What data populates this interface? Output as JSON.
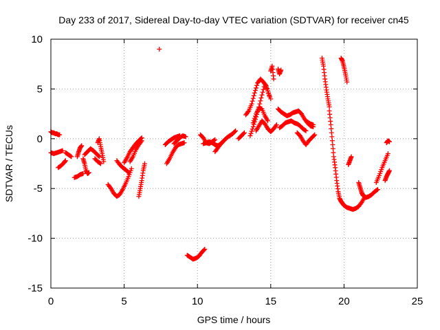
{
  "chart_data": {
    "type": "scatter",
    "title": "Day 233 of 2017, Sidereal Day-to-day VTEC variation (SDTVAR) for receiver cn45",
    "xlabel": "GPS time / hours",
    "ylabel": "SDTVAR / TECUs",
    "xlim": [
      0,
      25
    ],
    "ylim": [
      -15,
      10
    ],
    "xticks": [
      0,
      5,
      10,
      15,
      20,
      25
    ],
    "yticks": [
      -15,
      -10,
      -5,
      0,
      5,
      10
    ],
    "xtick_labels": [
      "0",
      "5",
      "10",
      "15",
      "20",
      "25"
    ],
    "ytick_labels": [
      "-15",
      "-10",
      "-5",
      "0",
      "5",
      "10"
    ],
    "grid": true,
    "marker": "plus",
    "series": [
      {
        "name": "SDTVAR",
        "color": "#ff0000",
        "segments": [
          {
            "x": [
              0.0,
              0.1,
              0.2,
              0.3,
              0.4,
              0.5,
              0.6
            ],
            "y": [
              0.7,
              0.6,
              0.6,
              0.5,
              0.5,
              0.4,
              0.4
            ]
          },
          {
            "x": [
              0.0,
              0.2,
              0.4,
              0.6,
              0.8
            ],
            "y": [
              -1.4,
              -1.5,
              -1.4,
              -1.3,
              -1.2
            ]
          },
          {
            "x": [
              0.5,
              0.7,
              0.9,
              1.0
            ],
            "y": [
              -2.9,
              -2.7,
              -2.4,
              -2.2
            ]
          },
          {
            "x": [
              1.0,
              1.2,
              1.4
            ],
            "y": [
              -1.4,
              -1.6,
              -1.8
            ]
          },
          {
            "x": [
              1.6,
              1.8,
              2.0,
              2.2
            ],
            "y": [
              -3.9,
              -3.8,
              -3.6,
              -3.5
            ]
          },
          {
            "x": [
              1.8,
              1.9,
              2.0,
              2.1
            ],
            "y": [
              -1.8,
              -1.3,
              -0.9,
              -0.7
            ]
          },
          {
            "x": [
              2.2,
              2.3,
              2.4,
              2.5,
              2.6
            ],
            "y": [
              -2.0,
              -2.5,
              -3.2,
              -3.5,
              -3.4
            ]
          },
          {
            "x": [
              2.3,
              2.5,
              2.7,
              2.9,
              3.1,
              3.3
            ],
            "y": [
              -1.6,
              -1.3,
              -1.0,
              -1.2,
              -1.5,
              -1.8
            ]
          },
          {
            "x": [
              3.2,
              3.3,
              3.4,
              3.5,
              3.6
            ],
            "y": [
              -0.4,
              0.0,
              -0.8,
              -1.5,
              -2.3
            ]
          },
          {
            "x": [
              3.0,
              3.2,
              3.4
            ],
            "y": [
              -2.0,
              -2.3,
              -2.5
            ]
          },
          {
            "x": [
              3.9,
              4.1,
              4.3,
              4.5,
              4.7,
              4.9,
              5.1,
              5.3,
              5.5
            ],
            "y": [
              -4.6,
              -5.0,
              -5.5,
              -5.8,
              -5.6,
              -5.1,
              -4.5,
              -3.8,
              -3.0
            ]
          },
          {
            "x": [
              4.5,
              4.7,
              4.9,
              5.1,
              5.3
            ],
            "y": [
              -2.2,
              -2.6,
              -2.9,
              -3.1,
              -3.4
            ]
          },
          {
            "x": [
              5.0,
              5.2,
              5.4,
              5.6,
              5.8,
              6.0,
              6.2
            ],
            "y": [
              -2.4,
              -1.9,
              -1.3,
              -0.9,
              -0.5,
              -0.2,
              0.1
            ]
          },
          {
            "x": [
              5.4,
              5.6,
              5.8,
              6.0,
              6.2
            ],
            "y": [
              -2.3,
              -1.8,
              -1.1,
              -0.6,
              -0.2
            ]
          },
          {
            "x": [
              6.0,
              6.1,
              6.2,
              6.3,
              6.4
            ],
            "y": [
              -5.8,
              -5.0,
              -4.2,
              -3.2,
              -2.5
            ]
          },
          {
            "x": [
              7.4
            ],
            "y": [
              9.0
            ]
          },
          {
            "x": [
              7.8,
              8.0,
              8.2,
              8.4,
              8.6,
              8.8
            ],
            "y": [
              -0.6,
              -0.3,
              -0.1,
              0.1,
              0.2,
              0.3
            ]
          },
          {
            "x": [
              7.9,
              8.1,
              8.3,
              8.5,
              8.7,
              8.9,
              9.1
            ],
            "y": [
              -2.5,
              -2.0,
              -1.4,
              -0.9,
              -0.6,
              -0.5,
              -0.4
            ]
          },
          {
            "x": [
              8.4,
              8.6,
              8.8,
              9.0,
              9.2
            ],
            "y": [
              -0.5,
              -0.2,
              0.1,
              0.3,
              0.2
            ]
          },
          {
            "x": [
              9.3,
              9.5,
              9.7,
              9.9,
              10.1,
              10.3,
              10.5
            ],
            "y": [
              -11.7,
              -11.9,
              -12.1,
              -12.0,
              -11.8,
              -11.4,
              -11.1
            ]
          },
          {
            "x": [
              10.2,
              10.4,
              10.6,
              10.8,
              11.0,
              11.2
            ],
            "y": [
              0.4,
              0.1,
              -0.4,
              -0.5,
              -0.3,
              -0.1
            ]
          },
          {
            "x": [
              10.4,
              10.6,
              10.8,
              11.0,
              11.2,
              11.4,
              11.6,
              11.8
            ],
            "y": [
              -0.5,
              -0.4,
              -0.3,
              -0.4,
              -0.6,
              -0.7,
              -0.5,
              -0.2
            ]
          },
          {
            "x": [
              11.2,
              11.4,
              11.6,
              11.8,
              12.0,
              12.2,
              12.4,
              12.6
            ],
            "y": [
              -1.3,
              -0.9,
              -0.5,
              -0.2,
              0.1,
              0.3,
              0.5,
              0.8
            ]
          },
          {
            "x": [
              12.8,
              13.0,
              13.2
            ],
            "y": [
              0.0,
              0.3,
              0.6
            ]
          },
          {
            "x": [
              13.3,
              13.5,
              13.7,
              13.9,
              14.1,
              14.3,
              14.5,
              14.7,
              14.9
            ],
            "y": [
              2.4,
              2.8,
              3.5,
              4.6,
              5.6,
              6.0,
              5.7,
              5.3,
              4.3
            ]
          },
          {
            "x": [
              13.6,
              13.8,
              14.0,
              14.2,
              14.4,
              14.6,
              14.8,
              15.0
            ],
            "y": [
              0.3,
              1.2,
              2.2,
              3.2,
              4.4,
              5.5,
              4.8,
              4.0
            ]
          },
          {
            "x": [
              13.8,
              14.0,
              14.2,
              14.4,
              14.6,
              14.8
            ],
            "y": [
              1.6,
              2.5,
              3.1,
              3.0,
              2.3,
              1.8
            ]
          },
          {
            "x": [
              14.0,
              14.2,
              14.4,
              14.6,
              14.8,
              15.0,
              15.2,
              15.4
            ],
            "y": [
              0.8,
              1.3,
              1.8,
              1.5,
              1.0,
              0.7,
              1.0,
              1.4
            ]
          },
          {
            "x": [
              15.0,
              15.1,
              15.2
            ],
            "y": [
              6.8,
              7.3,
              6.0
            ]
          },
          {
            "x": [
              15.5,
              15.6,
              15.7
            ],
            "y": [
              7.0,
              6.5,
              6.9
            ]
          },
          {
            "x": [
              15.5,
              15.7,
              15.9,
              16.1,
              16.3,
              16.5,
              16.7,
              16.9,
              17.1,
              17.3,
              17.5,
              17.7,
              17.9
            ],
            "y": [
              3.0,
              2.7,
              2.5,
              2.3,
              2.4,
              2.6,
              2.7,
              2.8,
              2.5,
              2.0,
              1.6,
              1.3,
              1.2
            ]
          },
          {
            "x": [
              15.6,
              15.8,
              16.0,
              16.2,
              16.4,
              16.6,
              16.8,
              17.0,
              17.2,
              17.4
            ],
            "y": [
              1.1,
              1.3,
              1.6,
              1.7,
              1.8,
              1.6,
              1.5,
              1.3,
              1.0,
              0.8
            ]
          },
          {
            "x": [
              16.8,
              17.0,
              17.2,
              17.4,
              17.6,
              17.8,
              18.0
            ],
            "y": [
              0.6,
              0.3,
              -0.2,
              -0.6,
              -0.2,
              0.1,
              0.4
            ]
          },
          {
            "x": [
              17.5,
              17.7,
              17.9
            ],
            "y": [
              1.7,
              1.5,
              1.4
            ]
          },
          {
            "x": [
              18.5,
              18.6,
              18.7,
              18.8,
              18.9,
              19.0
            ],
            "y": [
              8.1,
              7.3,
              6.0,
              4.9,
              4.0,
              3.2
            ]
          },
          {
            "x": [
              19.0,
              19.1,
              19.2,
              19.3,
              19.4,
              19.5,
              19.6,
              19.7,
              19.8,
              19.9,
              20.0,
              20.2,
              20.4,
              20.6,
              20.8,
              21.0,
              21.2,
              21.4
            ],
            "y": [
              2.8,
              1.4,
              -0.2,
              -1.8,
              -2.9,
              -4.2,
              -5.3,
              -6.0,
              -6.3,
              -6.5,
              -6.7,
              -6.9,
              -7.0,
              -7.1,
              -7.0,
              -6.8,
              -6.4,
              -5.9
            ]
          },
          {
            "x": [
              19.8,
              19.9,
              20.0,
              20.1,
              20.2
            ],
            "y": [
              8.1,
              7.8,
              7.2,
              6.5,
              5.7
            ]
          },
          {
            "x": [
              20.3,
              20.4,
              20.5
            ],
            "y": [
              -2.6,
              -2.2,
              -1.8
            ]
          },
          {
            "x": [
              21.0,
              21.1,
              21.2,
              21.3,
              21.5,
              21.7,
              21.9,
              22.1,
              22.3
            ],
            "y": [
              -4.4,
              -4.9,
              -5.4,
              -5.7,
              -5.9,
              -5.8,
              -5.6,
              -5.3,
              -5.1
            ]
          },
          {
            "x": [
              22.2,
              22.4,
              22.6,
              22.8,
              23.0
            ],
            "y": [
              -4.4,
              -3.7,
              -2.9,
              -2.2,
              -1.5
            ]
          },
          {
            "x": [
              22.8,
              22.9,
              23.0,
              23.1
            ],
            "y": [
              -4.2,
              -3.8,
              -3.5,
              -3.2
            ]
          },
          {
            "x": [
              22.9,
              23.0,
              23.1
            ],
            "y": [
              -0.4,
              -0.2,
              -0.3
            ]
          }
        ]
      }
    ]
  }
}
